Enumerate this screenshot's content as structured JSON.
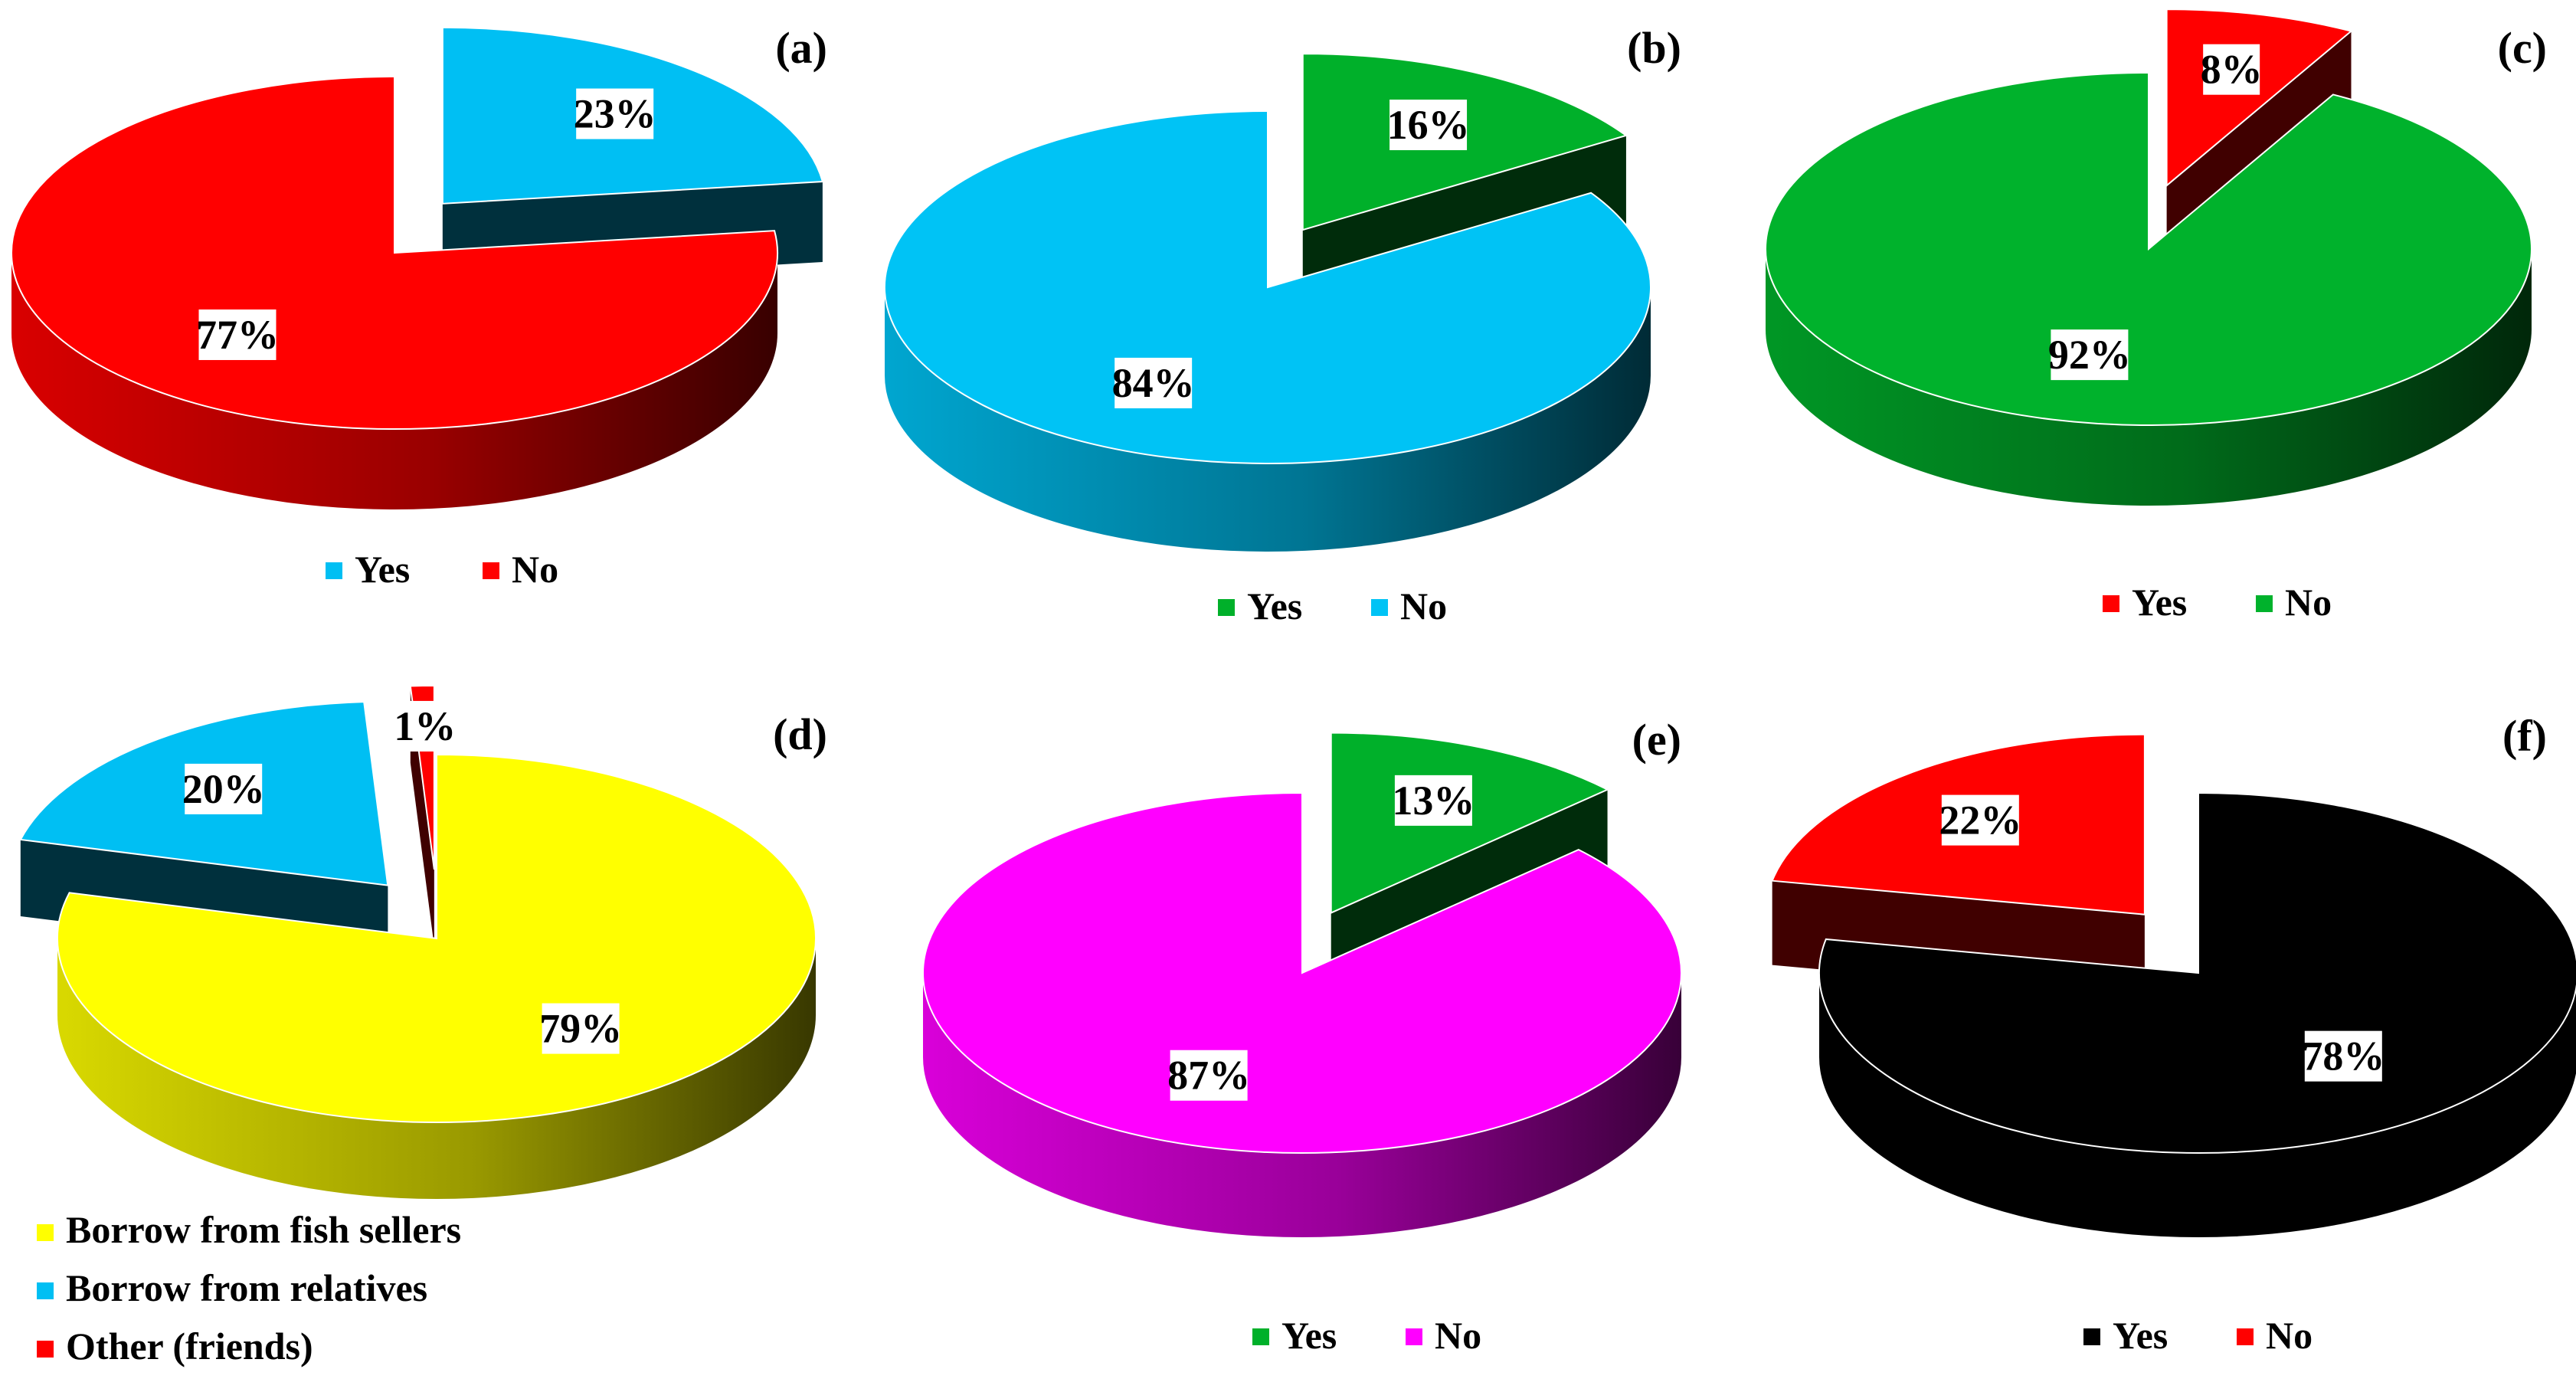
{
  "chart_data": [
    {
      "type": "pie",
      "panel_label": "(a)",
      "title": "",
      "slices": [
        {
          "label": "Yes",
          "value": 23,
          "display": "23%",
          "color": "#00BFF3",
          "exploded": true
        },
        {
          "label": "No",
          "value": 77,
          "display": "77%",
          "color": "#FF0000",
          "exploded": false
        }
      ],
      "legend": [
        "Yes",
        "No"
      ],
      "legend_placement": "bottom",
      "style": "3d"
    },
    {
      "type": "pie",
      "panel_label": "(b)",
      "title": "",
      "slices": [
        {
          "label": "Yes",
          "value": 16,
          "display": "16%",
          "color": "#00B02A",
          "exploded": true
        },
        {
          "label": "No",
          "value": 84,
          "display": "84%",
          "color": "#00C3F5",
          "exploded": false
        }
      ],
      "legend": [
        "Yes",
        "No"
      ],
      "legend_placement": "bottom",
      "style": "3d"
    },
    {
      "type": "pie",
      "panel_label": "(c)",
      "title": "",
      "slices": [
        {
          "label": "Yes",
          "value": 8,
          "display": "8%",
          "color": "#FF0000",
          "exploded": true
        },
        {
          "label": "No",
          "value": 92,
          "display": "92%",
          "color": "#00B22C",
          "exploded": false
        }
      ],
      "legend": [
        "Yes",
        "No"
      ],
      "legend_placement": "bottom",
      "style": "3d"
    },
    {
      "type": "pie",
      "panel_label": "(d)",
      "title": "",
      "slices": [
        {
          "label": "Borrow from fish sellers",
          "value": 79,
          "display": "79%",
          "color": "#FFFF00",
          "exploded": false
        },
        {
          "label": "Borrow from relatives",
          "value": 20,
          "display": "20%",
          "color": "#00BFF3",
          "exploded": true
        },
        {
          "label": "Other (friends)",
          "value": 1,
          "display": "1%",
          "color": "#FF0000",
          "exploded": true
        }
      ],
      "legend": [
        "Borrow from fish sellers",
        "Borrow from relatives",
        "Other (friends)"
      ],
      "legend_placement": "bottom-left",
      "style": "3d"
    },
    {
      "type": "pie",
      "panel_label": "(e)",
      "title": "",
      "slices": [
        {
          "label": "Yes",
          "value": 13,
          "display": "13%",
          "color": "#00B02A",
          "exploded": true
        },
        {
          "label": "No",
          "value": 87,
          "display": "87%",
          "color": "#FF00FF",
          "exploded": false
        }
      ],
      "legend": [
        "Yes",
        "No"
      ],
      "legend_placement": "bottom",
      "style": "3d"
    },
    {
      "type": "pie",
      "panel_label": "(f)",
      "title": "",
      "slices": [
        {
          "label": "Yes",
          "value": 78,
          "display": "78%",
          "color": "#000000",
          "exploded": false
        },
        {
          "label": "No",
          "value": 22,
          "display": "22%",
          "color": "#FF0000",
          "exploded": true
        }
      ],
      "legend": [
        "Yes",
        "No"
      ],
      "legend_placement": "bottom",
      "style": "3d"
    }
  ]
}
